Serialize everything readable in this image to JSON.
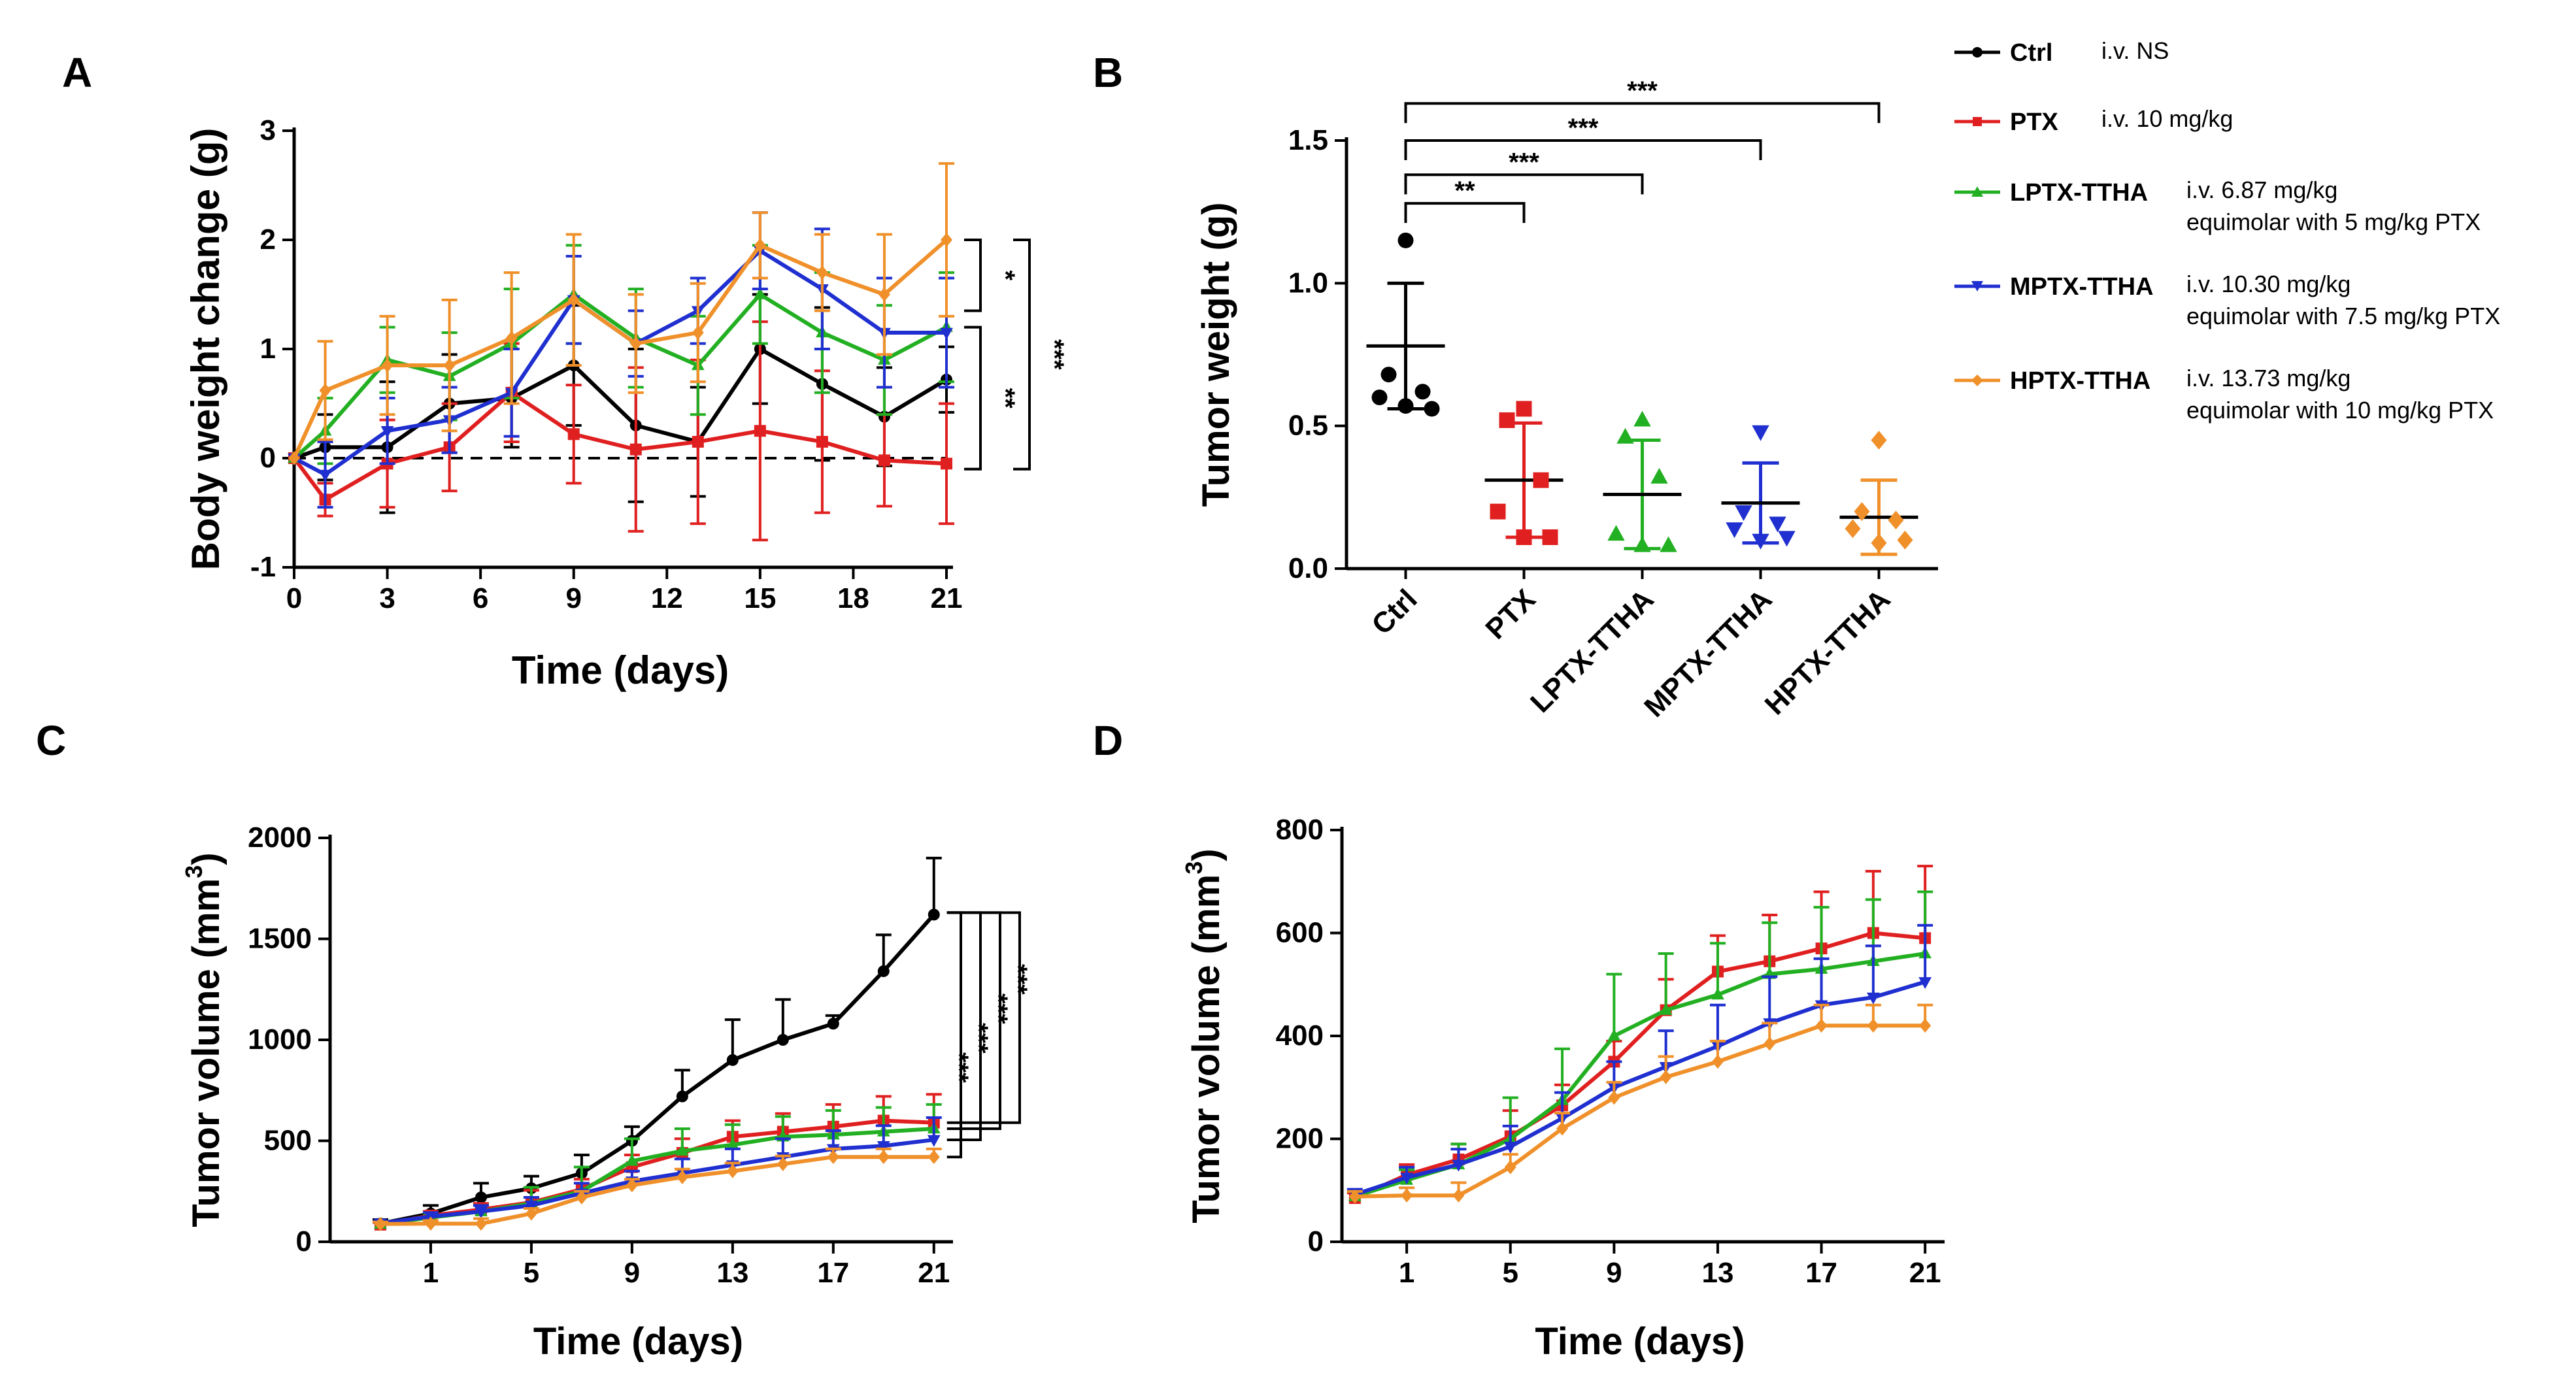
{
  "panels": {
    "A": "A",
    "B": "B",
    "C": "C",
    "D": "D"
  },
  "legend": [
    {
      "name": "Ctrl",
      "color": "#000000",
      "desc1": "i.v. NS",
      "desc2": ""
    },
    {
      "name": "PTX",
      "color": "#e02020",
      "desc1": "i.v. 10 mg/kg",
      "desc2": ""
    },
    {
      "name": "LPTX-TTHA",
      "color": "#22b022",
      "desc1": "i.v. 6.87  mg/kg",
      "desc2": "equimolar with 5 mg/kg PTX"
    },
    {
      "name": "MPTX-TTHA",
      "color": "#1f2fd0",
      "desc1": "i.v. 10.30  mg/kg",
      "desc2": "equimolar with 7.5 mg/kg PTX"
    },
    {
      "name": "HPTX-TTHA",
      "color": "#f0902a",
      "desc1": "i.v. 13.73  mg/kg",
      "desc2": "equimolar with 10 mg/kg PTX"
    }
  ],
  "chart_data": [
    {
      "id": "A",
      "type": "line",
      "xlabel": "Time (days)",
      "ylabel": "Body weight change (g)",
      "xlim": [
        0,
        21
      ],
      "ylim": [
        -1,
        3
      ],
      "xticks": [
        0,
        3,
        6,
        9,
        12,
        15,
        18,
        21
      ],
      "yticks": [
        -1,
        0,
        1,
        2,
        3
      ],
      "reference_line": 0,
      "x": [
        0,
        1,
        3,
        5,
        7,
        9,
        11,
        13,
        15,
        17,
        19,
        21
      ],
      "series": [
        {
          "name": "Ctrl",
          "values": [
            0,
            0.1,
            0.1,
            0.5,
            0.55,
            0.85,
            0.3,
            0.15,
            1.0,
            0.68,
            0.38,
            0.72
          ],
          "errors": [
            0,
            0.3,
            0.6,
            0.45,
            0.45,
            0.55,
            0.7,
            0.5,
            0.5,
            0.7,
            0.45,
            0.3
          ]
        },
        {
          "name": "PTX",
          "values": [
            0,
            -0.38,
            -0.05,
            0.1,
            0.6,
            0.22,
            0.08,
            0.15,
            0.25,
            0.15,
            -0.02,
            -0.05
          ],
          "errors": [
            0,
            0.15,
            0.4,
            0.4,
            0.45,
            0.45,
            0.75,
            0.75,
            1.0,
            0.65,
            0.42,
            0.55
          ]
        },
        {
          "name": "LPTX-TTHA",
          "values": [
            0,
            0.25,
            0.9,
            0.75,
            1.05,
            1.5,
            1.1,
            0.85,
            1.5,
            1.15,
            0.9,
            1.2
          ],
          "errors": [
            0,
            0.3,
            0.3,
            0.4,
            0.5,
            0.45,
            0.45,
            0.45,
            0.45,
            0.55,
            0.5,
            0.5
          ]
        },
        {
          "name": "MPTX-TTHA",
          "values": [
            0,
            -0.15,
            0.25,
            0.35,
            0.6,
            1.45,
            1.05,
            1.35,
            1.9,
            1.55,
            1.15,
            1.15
          ],
          "errors": [
            0,
            0.3,
            0.3,
            0.3,
            0.4,
            0.4,
            0.3,
            0.3,
            0.35,
            0.55,
            0.5,
            0.5
          ]
        },
        {
          "name": "HPTX-TTHA",
          "values": [
            0,
            0.62,
            0.85,
            0.85,
            1.1,
            1.45,
            1.05,
            1.15,
            1.95,
            1.7,
            1.5,
            2.0
          ],
          "errors": [
            0,
            0.45,
            0.45,
            0.6,
            0.6,
            0.6,
            0.45,
            0.45,
            0.3,
            0.35,
            0.55,
            0.7
          ]
        }
      ],
      "significance": [
        "*",
        "**",
        "***"
      ]
    },
    {
      "id": "B",
      "type": "scatter",
      "ylabel": "Tumor weight (g)",
      "ylim": [
        0,
        1.5
      ],
      "yticks": [
        0.0,
        0.5,
        1.0,
        1.5
      ],
      "ytick_labels": [
        "0.0",
        "0.5",
        "1.0",
        "1.5"
      ],
      "categories": [
        "Ctrl",
        "PTX",
        "LPTX-TTHA",
        "MPTX-TTHA",
        "HPTX-TTHA"
      ],
      "means": [
        0.78,
        0.31,
        0.26,
        0.23,
        0.18
      ],
      "sd": [
        0.22,
        0.2,
        0.19,
        0.14,
        0.13
      ],
      "points": [
        [
          1.15,
          0.68,
          0.62,
          0.6,
          0.56,
          0.57
        ],
        [
          0.56,
          0.52,
          0.31,
          0.2,
          0.11,
          0.11
        ],
        [
          0.52,
          0.46,
          0.32,
          0.12,
          0.08,
          0.08
        ],
        [
          0.48,
          0.2,
          0.16,
          0.14,
          0.11,
          0.1
        ],
        [
          0.45,
          0.2,
          0.17,
          0.14,
          0.1,
          0.09
        ]
      ],
      "significance": [
        "**",
        "***",
        "***",
        "***"
      ]
    },
    {
      "id": "C",
      "type": "line",
      "xlabel": "Time (days)",
      "ylabel": "Tumor volume (mm",
      "ylabel_sup": "3",
      "ylabel_end": ")",
      "xlim": [
        -3,
        21.5
      ],
      "ylim": [
        0,
        2000
      ],
      "xticks": [
        1,
        5,
        9,
        13,
        17,
        21
      ],
      "yticks": [
        0,
        500,
        1000,
        1500,
        2000
      ],
      "x": [
        -1,
        1,
        3,
        5,
        7,
        9,
        11,
        13,
        15,
        17,
        19,
        21
      ],
      "series": [
        {
          "name": "Ctrl",
          "values": [
            90,
            140,
            220,
            265,
            340,
            500,
            720,
            900,
            1000,
            1080,
            1340,
            1620
          ],
          "errors": [
            20,
            40,
            70,
            60,
            90,
            70,
            130,
            200,
            200,
            40,
            180,
            280
          ]
        },
        {
          "name": "PTX",
          "values": [
            85,
            130,
            160,
            195,
            260,
            370,
            440,
            520,
            545,
            570,
            600,
            590
          ],
          "errors": [
            10,
            20,
            30,
            60,
            50,
            60,
            70,
            80,
            90,
            110,
            120,
            140
          ]
        },
        {
          "name": "LPTX-TTHA",
          "values": [
            88,
            120,
            150,
            190,
            250,
            400,
            450,
            480,
            520,
            530,
            545,
            560
          ],
          "errors": [
            10,
            20,
            30,
            80,
            120,
            110,
            110,
            100,
            100,
            120,
            120,
            120
          ]
        },
        {
          "name": "MPTX-TTHA",
          "values": [
            92,
            125,
            150,
            180,
            240,
            300,
            340,
            380,
            420,
            460,
            475,
            505
          ],
          "errors": [
            10,
            20,
            30,
            40,
            50,
            50,
            70,
            80,
            90,
            90,
            100,
            110
          ]
        },
        {
          "name": "HPTX-TTHA",
          "values": [
            88,
            90,
            90,
            140,
            220,
            280,
            320,
            350,
            385,
            420,
            420,
            420
          ],
          "errors": [
            10,
            15,
            25,
            25,
            30,
            30,
            40,
            40,
            40,
            40,
            40,
            40
          ]
        }
      ],
      "significance": [
        "***",
        "***",
        "***",
        "***"
      ]
    },
    {
      "id": "D",
      "type": "line",
      "xlabel": "Time (days)",
      "ylabel": "Tumor volume (mm",
      "ylabel_sup": "3",
      "ylabel_end": ")",
      "xlim": [
        -1.5,
        21.5
      ],
      "ylim": [
        0,
        800
      ],
      "xticks": [
        1,
        5,
        9,
        13,
        17,
        21
      ],
      "yticks": [
        0,
        200,
        400,
        600,
        800
      ],
      "x": [
        -1,
        1,
        3,
        5,
        7,
        9,
        11,
        13,
        15,
        17,
        19,
        21
      ],
      "series": [
        {
          "name": "PTX",
          "values": [
            85,
            130,
            160,
            205,
            265,
            350,
            450,
            525,
            545,
            570,
            600,
            590
          ],
          "errors": [
            10,
            20,
            30,
            50,
            40,
            40,
            60,
            70,
            90,
            110,
            120,
            140
          ]
        },
        {
          "name": "LPTX-TTHA",
          "values": [
            88,
            120,
            150,
            200,
            275,
            400,
            450,
            480,
            520,
            530,
            545,
            560
          ],
          "errors": [
            10,
            20,
            40,
            80,
            100,
            120,
            110,
            100,
            100,
            120,
            120,
            120
          ]
        },
        {
          "name": "MPTX-TTHA",
          "values": [
            92,
            125,
            150,
            185,
            240,
            300,
            340,
            380,
            425,
            460,
            475,
            505
          ],
          "errors": [
            10,
            20,
            30,
            40,
            50,
            50,
            70,
            80,
            90,
            90,
            100,
            110
          ]
        },
        {
          "name": "HPTX-TTHA",
          "values": [
            88,
            90,
            90,
            145,
            220,
            280,
            320,
            350,
            385,
            420,
            420,
            420
          ],
          "errors": [
            10,
            15,
            25,
            25,
            30,
            30,
            40,
            40,
            40,
            40,
            40,
            40
          ]
        }
      ]
    }
  ]
}
